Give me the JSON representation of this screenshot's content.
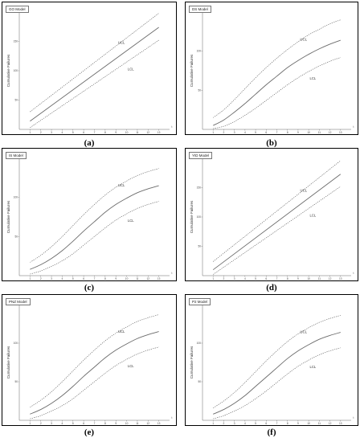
{
  "chart_data": [
    {
      "panel": "a",
      "caption": "(a)",
      "model": "GO Model",
      "type": "line",
      "ylabel": "Cumulative Failures",
      "xlabel_end": "t",
      "ylim": [
        0,
        200
      ],
      "xlim": [
        0,
        14
      ],
      "y_ticks": [
        "50",
        "100",
        "150",
        "200"
      ],
      "x_ticks": [
        "1",
        "2",
        "3",
        "4",
        "5",
        "6",
        "7",
        "8",
        "9",
        "10",
        "11",
        "12",
        "13"
      ],
      "x": [
        1,
        13
      ],
      "series": [
        {
          "label": "UCL",
          "values": [
            30,
            198
          ]
        },
        {
          "values": [
            14,
            174
          ]
        },
        {
          "label": "LCL",
          "values": [
            3,
            152
          ]
        }
      ]
    },
    {
      "panel": "b",
      "caption": "(b)",
      "model": "DS Model",
      "type": "line",
      "ylabel": "Cumulative Failures",
      "xlabel_end": "t",
      "ylim": [
        0,
        150
      ],
      "xlim": [
        0,
        14
      ],
      "y_ticks": [
        "50",
        "100",
        "150"
      ],
      "x_ticks": [
        "1",
        "2",
        "3",
        "4",
        "5",
        "6",
        "7",
        "8",
        "9",
        "10",
        "11",
        "12",
        "13"
      ],
      "x": [
        1,
        2,
        3,
        4,
        5,
        6,
        7,
        8,
        9,
        10,
        11,
        12,
        13
      ],
      "series": [
        {
          "label": "UCL",
          "values": [
            15,
            25,
            38,
            52,
            66,
            79,
            91,
            102,
            112,
            121,
            128,
            135,
            140
          ]
        },
        {
          "values": [
            5,
            12,
            22,
            33,
            45,
            57,
            68,
            79,
            88,
            96,
            103,
            109,
            114
          ]
        },
        {
          "label": "LCL",
          "values": [
            1,
            4,
            10,
            18,
            27,
            37,
            47,
            57,
            66,
            74,
            81,
            87,
            92
          ]
        }
      ]
    },
    {
      "panel": "c",
      "caption": "(c)",
      "model": "IS Model",
      "type": "line",
      "ylabel": "Cumulative Failures",
      "xlabel_end": "t",
      "ylim": [
        0,
        150
      ],
      "xlim": [
        0,
        14
      ],
      "y_ticks": [
        "50",
        "100",
        "150"
      ],
      "x_ticks": [
        "1",
        "2",
        "3",
        "4",
        "5",
        "6",
        "7",
        "8",
        "9",
        "10",
        "11",
        "12",
        "13"
      ],
      "x": [
        1,
        2,
        3,
        4,
        5,
        6,
        7,
        8,
        9,
        10,
        11,
        12,
        13
      ],
      "series": [
        {
          "label": "UCL",
          "values": [
            17,
            26,
            37,
            50,
            64,
            78,
            91,
            103,
            113,
            121,
            128,
            133,
            137
          ]
        },
        {
          "values": [
            8,
            14,
            22,
            32,
            44,
            57,
            69,
            81,
            91,
            99,
            106,
            111,
            115
          ]
        },
        {
          "label": "LCL",
          "values": [
            2,
            6,
            12,
            19,
            28,
            39,
            50,
            61,
            71,
            79,
            86,
            91,
            95
          ]
        }
      ]
    },
    {
      "panel": "d",
      "caption": "(d)",
      "model": "YID Model",
      "type": "line",
      "ylabel": "Cumulative Failures",
      "xlabel_end": "t",
      "ylim": [
        0,
        200
      ],
      "xlim": [
        0,
        14
      ],
      "y_ticks": [
        "50",
        "100",
        "150",
        "200"
      ],
      "x_ticks": [
        "1",
        "2",
        "3",
        "4",
        "5",
        "6",
        "7",
        "8",
        "9",
        "10",
        "11",
        "12",
        "13"
      ],
      "x": [
        1,
        13
      ],
      "series": [
        {
          "label": "UCL",
          "values": [
            24,
            196
          ]
        },
        {
          "values": [
            10,
            173
          ]
        },
        {
          "label": "LCL",
          "values": [
            2,
            152
          ]
        }
      ]
    },
    {
      "panel": "e",
      "caption": "(e)",
      "model": "PNZ Model",
      "type": "line",
      "ylabel": "Cumulative Failures",
      "xlabel_end": "t",
      "ylim": [
        0,
        150
      ],
      "xlim": [
        0,
        14
      ],
      "y_ticks": [
        "50",
        "100",
        "150"
      ],
      "x_ticks": [
        "1",
        "2",
        "3",
        "4",
        "5",
        "6",
        "7",
        "8",
        "9",
        "10",
        "11",
        "12",
        "13"
      ],
      "x": [
        1,
        2,
        3,
        4,
        5,
        6,
        7,
        8,
        9,
        10,
        11,
        12,
        13
      ],
      "series": [
        {
          "label": "UCL",
          "values": [
            17,
            26,
            37,
            50,
            64,
            78,
            91,
            103,
            113,
            121,
            128,
            133,
            137
          ]
        },
        {
          "values": [
            8,
            14,
            22,
            32,
            44,
            57,
            69,
            81,
            91,
            99,
            106,
            111,
            115
          ]
        },
        {
          "label": "LCL",
          "values": [
            2,
            6,
            12,
            19,
            28,
            39,
            50,
            61,
            71,
            79,
            86,
            91,
            95
          ]
        }
      ]
    },
    {
      "panel": "f",
      "caption": "(f)",
      "model": "P2 Model",
      "type": "line",
      "ylabel": "Cumulative Failures",
      "xlabel_end": "t",
      "ylim": [
        0,
        150
      ],
      "xlim": [
        0,
        14
      ],
      "y_ticks": [
        "50",
        "100",
        "150"
      ],
      "x_ticks": [
        "1",
        "2",
        "3",
        "4",
        "5",
        "6",
        "7",
        "8",
        "9",
        "10",
        "11",
        "12",
        "13"
      ],
      "x": [
        1,
        2,
        3,
        4,
        5,
        6,
        7,
        8,
        9,
        10,
        11,
        12,
        13
      ],
      "series": [
        {
          "label": "UCL",
          "values": [
            16,
            25,
            36,
            49,
            63,
            77,
            90,
            102,
            112,
            120,
            127,
            132,
            136
          ]
        },
        {
          "values": [
            8,
            14,
            22,
            32,
            44,
            56,
            68,
            80,
            90,
            98,
            105,
            110,
            114
          ]
        },
        {
          "label": "LCL",
          "values": [
            2,
            6,
            12,
            19,
            28,
            38,
            49,
            60,
            70,
            78,
            85,
            90,
            94
          ]
        }
      ]
    }
  ]
}
